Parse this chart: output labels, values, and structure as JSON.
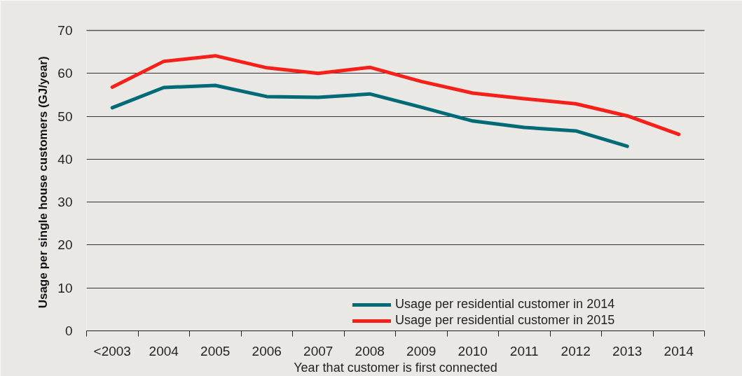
{
  "chart_data": {
    "type": "line",
    "xlabel": "Year that customer is first connected",
    "ylabel": "Usage per single  house customers (GJ/year)",
    "categories": [
      "<2003",
      "2004",
      "2005",
      "2006",
      "2007",
      "2008",
      "2009",
      "2010",
      "2011",
      "2012",
      "2013",
      "2014"
    ],
    "series": [
      {
        "name": "Usage per residential customer in 2014",
        "color": "#006b77",
        "values": [
          52.0,
          56.7,
          57.2,
          54.6,
          54.4,
          55.2,
          52.1,
          48.9,
          47.4,
          46.6,
          43.0,
          null
        ]
      },
      {
        "name": "Usage per residential customer in 2015",
        "color": "#f5201a",
        "values": [
          56.8,
          62.8,
          64.1,
          61.3,
          60.0,
          61.4,
          58.1,
          55.4,
          54.1,
          52.9,
          50.1,
          45.8
        ]
      }
    ],
    "ylim": [
      0,
      70
    ],
    "yticks": [
      0,
      10,
      20,
      30,
      40,
      50,
      60,
      70
    ],
    "grid": "y",
    "legend": "bottom right",
    "line_style": "solid"
  }
}
